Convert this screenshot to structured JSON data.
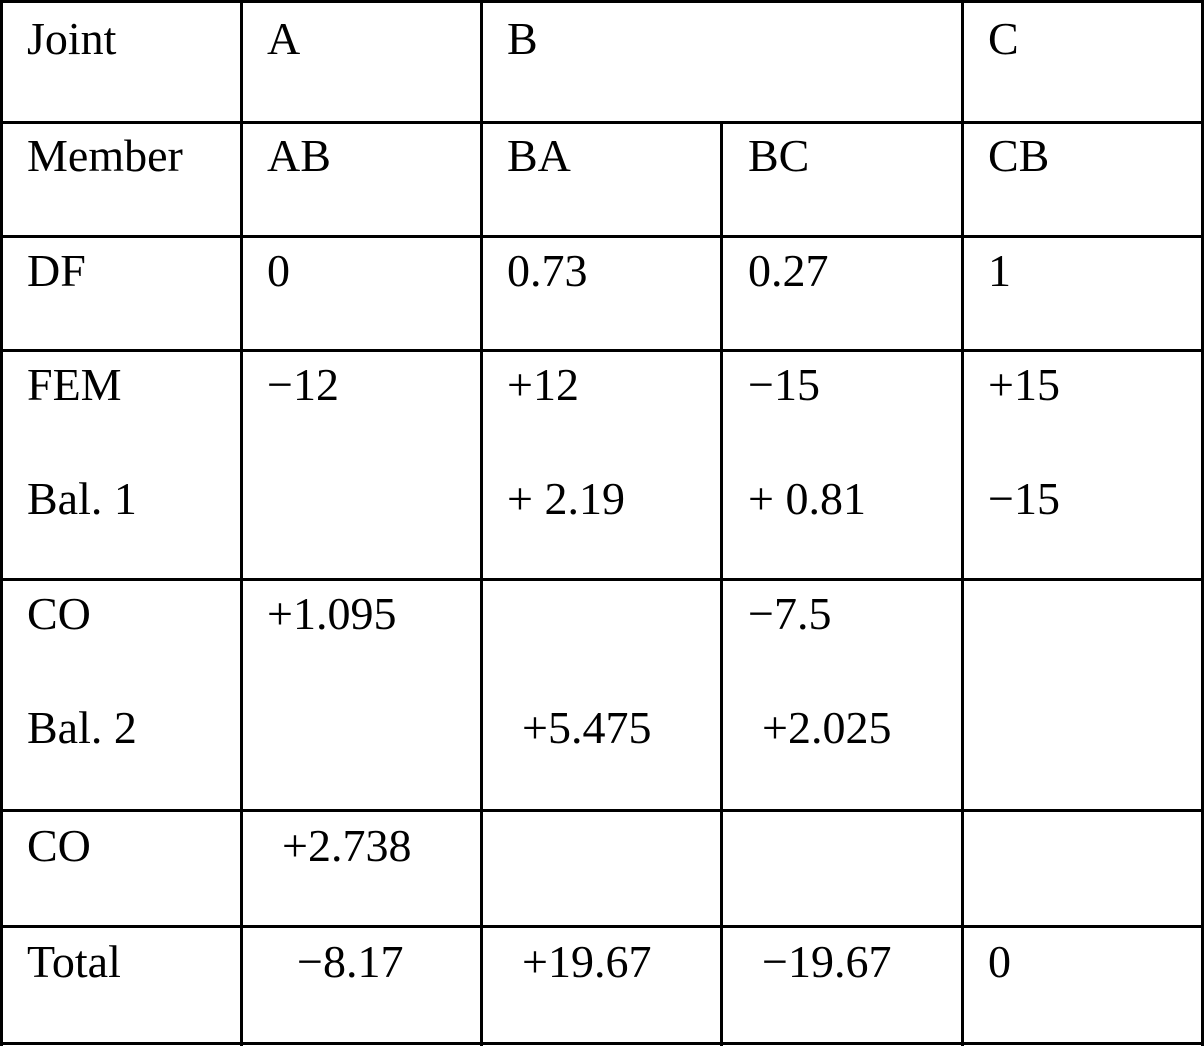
{
  "table": {
    "joint_row": {
      "label": "Joint",
      "a": "A",
      "b": "B",
      "c": "C"
    },
    "member_row": {
      "label": "Member",
      "ab": "AB",
      "ba": "BA",
      "bc": "BC",
      "cb": "CB"
    },
    "df_row": {
      "label": "DF",
      "ab": "0",
      "ba": "0.73",
      "bc": "0.27",
      "cb": "1"
    },
    "fem_row": {
      "label": "FEM",
      "ab": "−12",
      "ba": "+12",
      "bc": "−15",
      "cb": "+15"
    },
    "bal1_row": {
      "label": "Bal. 1",
      "ab": "",
      "ba": "+ 2.19",
      "bc": "+ 0.81",
      "cb": "−15"
    },
    "co1_row": {
      "label": "CO",
      "ab": "+1.095",
      "ba": "",
      "bc": "−7.5",
      "cb": ""
    },
    "bal2_row": {
      "label": "Bal. 2",
      "ab": "",
      "ba": "+5.475",
      "bc": "+2.025",
      "cb": ""
    },
    "co2_row": {
      "label": "CO",
      "ab": "+2.738",
      "ba": "",
      "bc": "",
      "cb": ""
    },
    "total_row": {
      "label": "Total",
      "ab": "−8.17",
      "ba": "+19.67",
      "bc": "−19.67",
      "cb": "0"
    }
  }
}
